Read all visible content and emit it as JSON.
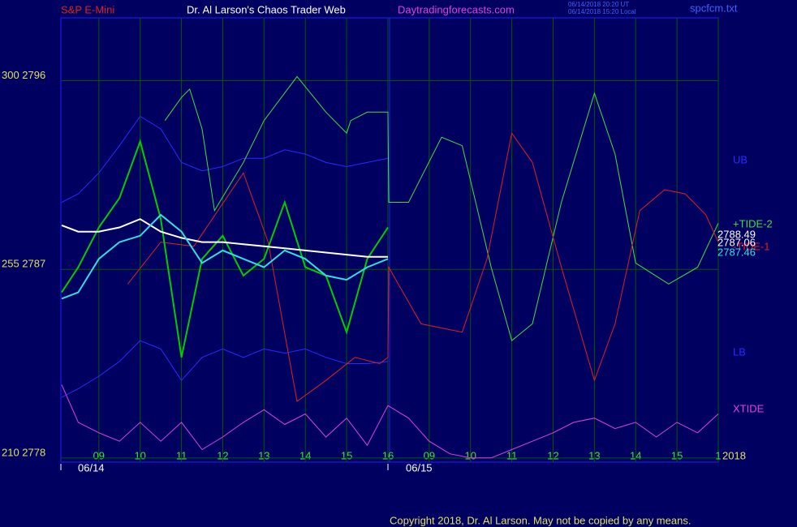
{
  "chart_data": {
    "type": "line",
    "symbol": "S&P E-Mini",
    "title": "Dr. Al Larson's Chaos Trader Web",
    "site": "Daytradingforecasts.com",
    "timestamps": [
      "06/14/2018 20:20 UT",
      "06/14/2018 15:20 Local"
    ],
    "file": "spcfcm.txt",
    "copyright": "Copyright 2018, Dr. Al Larson. May not be copied by any means.",
    "date_labels": [
      "06/14",
      "06/15"
    ],
    "year": "2018",
    "xlim": [
      0.08,
      16
    ],
    "ylim": [
      2777.8,
      2799
    ],
    "xticks": [
      {
        "value": 1,
        "label": "09"
      },
      {
        "value": 2,
        "label": "10"
      },
      {
        "value": 3,
        "label": "11"
      },
      {
        "value": 4,
        "label": "12"
      },
      {
        "value": 5,
        "label": "13"
      },
      {
        "value": 6,
        "label": "14"
      },
      {
        "value": 7,
        "label": "15"
      },
      {
        "value": 8,
        "label": "16"
      },
      {
        "value": 9,
        "label": "09"
      },
      {
        "value": 10,
        "label": "10"
      },
      {
        "value": 11,
        "label": "11"
      },
      {
        "value": 12,
        "label": "12"
      },
      {
        "value": 13,
        "label": "13"
      },
      {
        "value": 14,
        "label": "14"
      },
      {
        "value": 15,
        "label": "15"
      },
      {
        "value": 16,
        "label": "1"
      }
    ],
    "yticks": [
      {
        "value": 2796,
        "label": "300  2796"
      },
      {
        "value": 2787,
        "label": "255  2787"
      },
      {
        "value": 2778,
        "label": "210  2778"
      }
    ],
    "grid": true,
    "series": [
      {
        "name": "UB",
        "color": "#2a2aff",
        "x": [
          0.1,
          0.5,
          1,
          1.5,
          2,
          2.5,
          3,
          3.5,
          4,
          4.5,
          5,
          5.5,
          6,
          6.5,
          7,
          7.5,
          8
        ],
        "values": [
          2790.2,
          2790.6,
          2791.6,
          2792.9,
          2794.3,
          2793.7,
          2792.1,
          2791.7,
          2791.9,
          2792.3,
          2792.3,
          2792.7,
          2792.5,
          2792.1,
          2791.9,
          2792.1,
          2792.3
        ]
      },
      {
        "name": "LB",
        "color": "#2a2aff",
        "x": [
          0.1,
          0.5,
          1,
          1.5,
          2,
          2.5,
          3,
          3.5,
          4,
          4.5,
          5,
          5.5,
          6,
          6.5,
          7,
          7.5,
          8
        ],
        "values": [
          2780.9,
          2781.3,
          2781.9,
          2782.6,
          2783.6,
          2783.2,
          2781.7,
          2782.8,
          2783.2,
          2782.8,
          2783.2,
          2783.0,
          2783.2,
          2782.8,
          2782.5,
          2782.5,
          2782.6
        ]
      },
      {
        "name": "+TIDE-2",
        "color": "#40e040",
        "x": [
          2.6,
          3.0,
          3.2,
          3.5,
          3.8,
          4.5,
          5.0,
          5.8,
          6.5,
          7.0,
          7.1,
          7.5,
          8.0,
          8.02,
          8.5,
          9.3,
          9.8,
          10.5,
          11.0,
          11.5,
          12.2,
          13.0,
          13.5,
          14.0,
          14.8,
          15.5,
          16.0
        ],
        "values": [
          2794.1,
          2795.2,
          2795.6,
          2793.7,
          2789.8,
          2792.1,
          2794.1,
          2796.2,
          2794.5,
          2793.5,
          2794.1,
          2794.5,
          2794.5,
          2790.2,
          2790.2,
          2793.3,
          2792.9,
          2787.1,
          2783.6,
          2784.4,
          2790.2,
          2795.4,
          2792.5,
          2787.3,
          2786.3,
          2787.1,
          2789.2
        ]
      },
      {
        "name": "-TIDE-1",
        "color": "#e02020",
        "x": [
          1.7,
          2.5,
          3.3,
          4.5,
          5.1,
          5.8,
          6.5,
          7.2,
          7.8,
          8.0,
          8.02,
          8.8,
          9.8,
          10.4,
          11.0,
          11.5,
          12.2,
          13.0,
          13.5,
          14.1,
          14.7,
          15.2,
          15.7,
          16.0
        ],
        "values": [
          2786.3,
          2788.3,
          2788.1,
          2791.6,
          2788.3,
          2780.7,
          2781.7,
          2782.8,
          2782.5,
          2782.8,
          2787.1,
          2784.4,
          2784.0,
          2787.5,
          2793.5,
          2792.1,
          2787.1,
          2781.7,
          2784.4,
          2789.8,
          2790.8,
          2790.6,
          2789.6,
          2788.3
        ]
      },
      {
        "name": "XTIDE",
        "color": "#e040e0",
        "x": [
          0.1,
          0.5,
          1,
          1.5,
          2,
          2.5,
          3,
          3.5,
          4,
          4.5,
          5,
          5.5,
          6,
          6.5,
          7,
          7.5,
          8,
          8.5,
          9,
          9.5,
          10,
          10.5,
          11,
          11.5,
          12,
          12.5,
          13,
          13.5,
          14,
          14.5,
          15,
          15.5,
          16
        ],
        "values": [
          2781.5,
          2779.7,
          2779.2,
          2778.8,
          2779.7,
          2778.8,
          2779.7,
          2778.4,
          2779.0,
          2779.7,
          2780.3,
          2779.6,
          2780.1,
          2779.0,
          2779.9,
          2778.6,
          2780.5,
          2779.9,
          2778.8,
          2778.2,
          2778.0,
          2778.0,
          2778.4,
          2778.8,
          2779.2,
          2779.7,
          2779.9,
          2779.4,
          2779.7,
          2779.0,
          2779.7,
          2779.2,
          2780.1
        ]
      },
      {
        "color": "#00cc00",
        "x": [
          0.1,
          0.5,
          1,
          1.5,
          2,
          2.5,
          3,
          3.5,
          4,
          4.5,
          5,
          5.5,
          6,
          6.5,
          7,
          7.5,
          8
        ],
        "values": [
          2785.9,
          2787.1,
          2789.0,
          2790.4,
          2793.1,
          2789.4,
          2782.8,
          2787.5,
          2788.6,
          2786.7,
          2787.5,
          2790.2,
          2787.1,
          2786.7,
          2784.0,
          2787.5,
          2789.0
        ]
      },
      {
        "color": "#ffffff",
        "x": [
          0.1,
          0.5,
          1,
          1.5,
          2,
          2.5,
          3,
          3.5,
          4,
          4.5,
          5,
          5.5,
          6,
          6.5,
          7,
          7.5,
          8
        ],
        "values": [
          2789.1,
          2788.8,
          2788.8,
          2789.0,
          2789.4,
          2788.8,
          2788.5,
          2788.3,
          2788.3,
          2788.2,
          2788.1,
          2788.0,
          2787.9,
          2787.8,
          2787.7,
          2787.6,
          2787.6
        ]
      },
      {
        "color": "#30e0e0",
        "x": [
          0.1,
          0.5,
          1,
          1.5,
          2,
          2.5,
          3,
          3.5,
          4,
          4.5,
          5,
          5.5,
          6,
          6.5,
          7,
          7.5,
          8
        ],
        "values": [
          2785.6,
          2785.9,
          2787.5,
          2788.3,
          2788.6,
          2789.6,
          2788.8,
          2787.3,
          2787.9,
          2787.5,
          2787.1,
          2787.9,
          2787.5,
          2786.7,
          2786.5,
          2787.1,
          2787.5
        ]
      }
    ],
    "end_labels": [
      {
        "text": "2788.49",
        "color": "#ffffff"
      },
      {
        "text": "2787.06",
        "color": "#ffffff"
      },
      {
        "text": "2787.46",
        "color": "#30e0e0"
      }
    ]
  }
}
